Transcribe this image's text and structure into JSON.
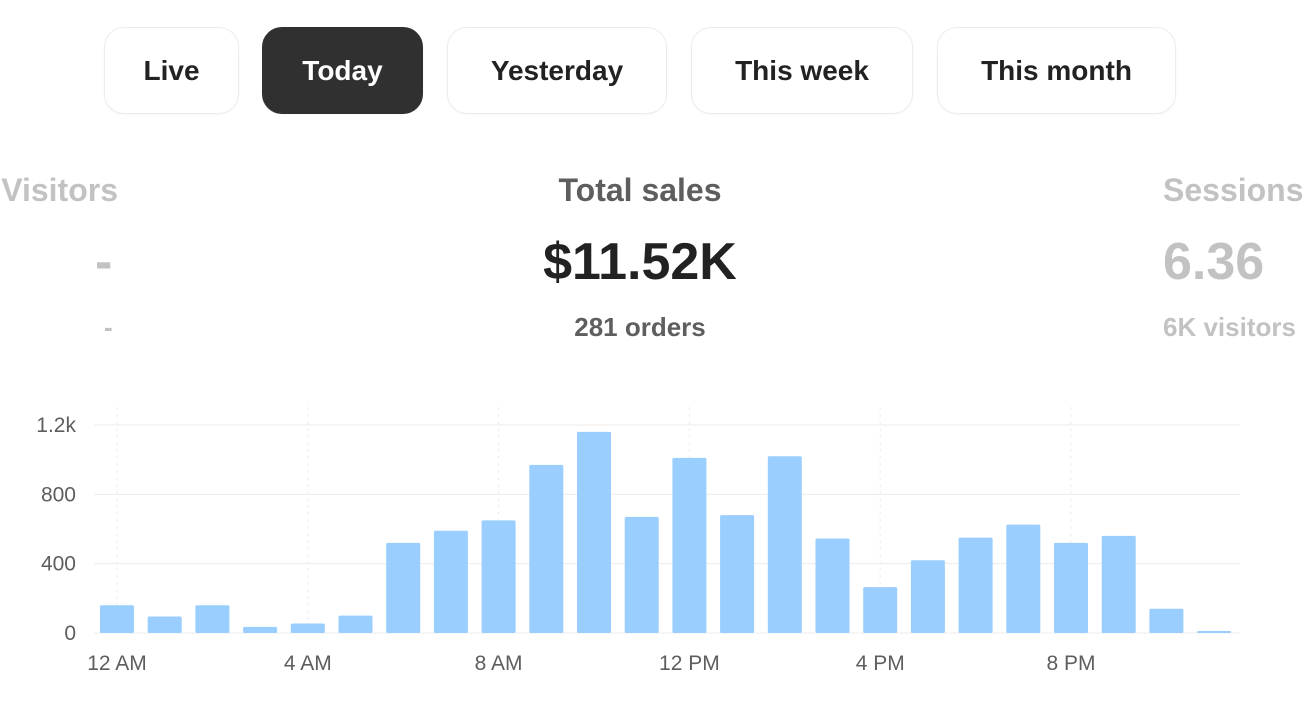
{
  "tabs": [
    {
      "label": "Live",
      "active": false
    },
    {
      "label": "Today",
      "active": true
    },
    {
      "label": "Yesterday",
      "active": false
    },
    {
      "label": "This week",
      "active": false
    },
    {
      "label": "This month",
      "active": false
    }
  ],
  "metrics": {
    "visitors": {
      "title": "Visitors",
      "value": "-",
      "sub": "-"
    },
    "total_sales": {
      "title": "Total sales",
      "value": "$11.52K",
      "sub": "281 orders"
    },
    "sessions": {
      "title": "Sessions",
      "value": "6.36",
      "sub": "6K visitors"
    }
  },
  "colors": {
    "bar": "#99ceff",
    "active_tab": "#303030",
    "grid": "#ececec"
  },
  "chart_data": {
    "type": "bar",
    "categories": [
      "12 AM",
      "1 AM",
      "2 AM",
      "3 AM",
      "4 AM",
      "5 AM",
      "6 AM",
      "7 AM",
      "8 AM",
      "9 AM",
      "10 AM",
      "11 AM",
      "12 PM",
      "1 PM",
      "2 PM",
      "3 PM",
      "4 PM",
      "5 PM",
      "6 PM",
      "7 PM",
      "8 PM",
      "9 PM",
      "10 PM",
      "11 PM"
    ],
    "values": [
      160,
      95,
      160,
      35,
      55,
      100,
      520,
      590,
      650,
      970,
      1160,
      670,
      1010,
      680,
      1020,
      545,
      265,
      420,
      550,
      625,
      520,
      560,
      140,
      10
    ],
    "x_tick_labels": [
      "12 AM",
      "4 AM",
      "8 AM",
      "12 PM",
      "4 PM",
      "8 PM"
    ],
    "y_tick_labels": [
      "0",
      "400",
      "800",
      "1.2k"
    ],
    "y_ticks": [
      0,
      400,
      800,
      1200
    ],
    "ylim": [
      0,
      1200
    ],
    "grid": true,
    "title": "",
    "xlabel": "",
    "ylabel": ""
  }
}
